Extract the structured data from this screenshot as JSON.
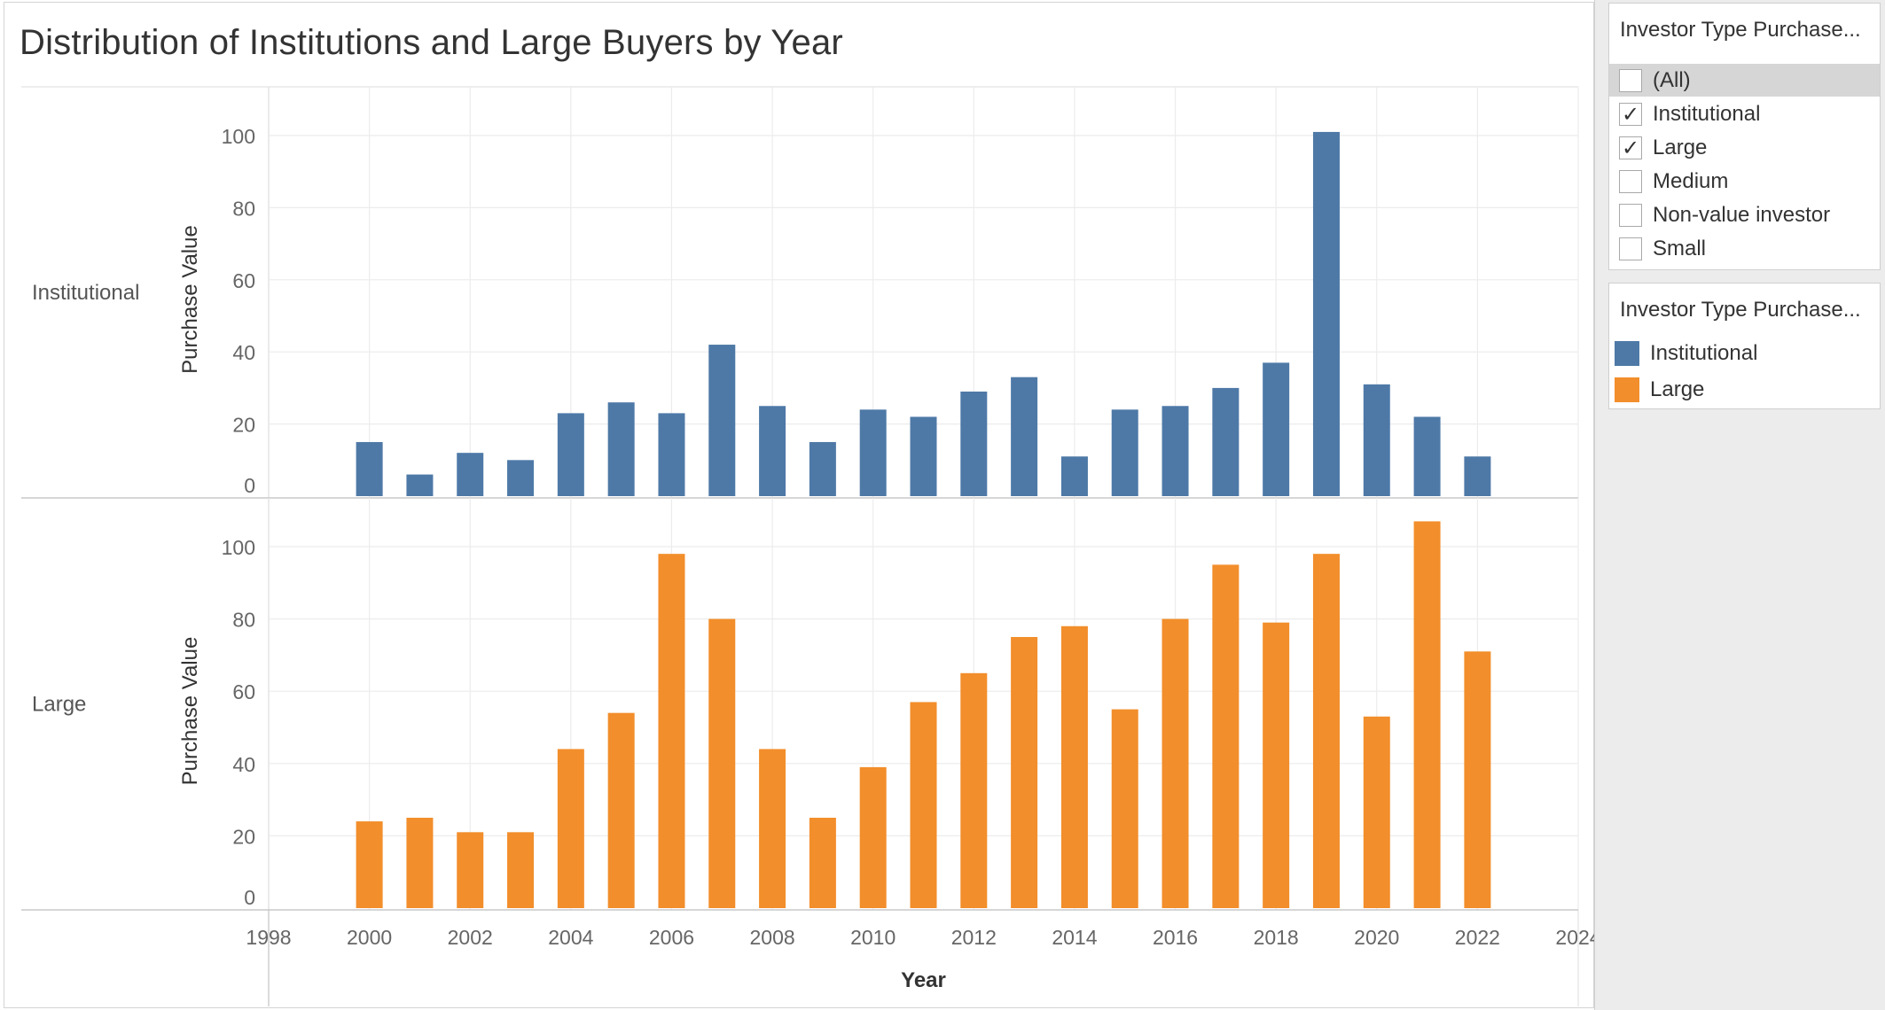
{
  "title": "Distribution of Institutions and Large Buyers by Year",
  "filter": {
    "title": "Investor Type Purchase...",
    "items": [
      {
        "label": "(All)",
        "checked": false,
        "highlight": true
      },
      {
        "label": "Institutional",
        "checked": true,
        "highlight": false
      },
      {
        "label": "Large",
        "checked": true,
        "highlight": false
      },
      {
        "label": "Medium",
        "checked": false,
        "highlight": false
      },
      {
        "label": "Non-value investor",
        "checked": false,
        "highlight": false
      },
      {
        "label": "Small",
        "checked": false,
        "highlight": false
      }
    ],
    "check_glyph": "✓"
  },
  "legend": {
    "title": "Investor Type Purchase...",
    "items": [
      {
        "label": "Institutional",
        "color": "#4e79a7"
      },
      {
        "label": "Large",
        "color": "#f28e2b"
      }
    ]
  },
  "chart_data": {
    "type": "bar",
    "title": "Distribution of Institutions and Large Buyers by Year",
    "xlabel": "Year",
    "ylabel": "Purchase Value",
    "x": [
      2000,
      2001,
      2002,
      2003,
      2004,
      2005,
      2006,
      2007,
      2008,
      2009,
      2010,
      2011,
      2012,
      2013,
      2014,
      2015,
      2016,
      2017,
      2018,
      2019,
      2020,
      2021,
      2022
    ],
    "xlim": [
      1998,
      2024
    ],
    "x_ticks": [
      1998,
      2000,
      2002,
      2004,
      2006,
      2008,
      2010,
      2012,
      2014,
      2016,
      2018,
      2020,
      2022,
      2024
    ],
    "ylim": [
      0,
      110
    ],
    "y_ticks": [
      0,
      20,
      40,
      60,
      80,
      100
    ],
    "grid": true,
    "legend_position": "right",
    "series": [
      {
        "name": "Institutional",
        "color": "#4e79a7",
        "values": [
          15,
          6,
          12,
          10,
          23,
          26,
          23,
          42,
          25,
          15,
          24,
          22,
          29,
          33,
          11,
          24,
          25,
          30,
          37,
          101,
          31,
          22,
          11
        ]
      },
      {
        "name": "Large",
        "color": "#f28e2b",
        "values": [
          24,
          25,
          21,
          21,
          44,
          54,
          98,
          80,
          44,
          25,
          39,
          57,
          65,
          75,
          78,
          55,
          80,
          95,
          79,
          98,
          53,
          107,
          71
        ]
      }
    ]
  }
}
